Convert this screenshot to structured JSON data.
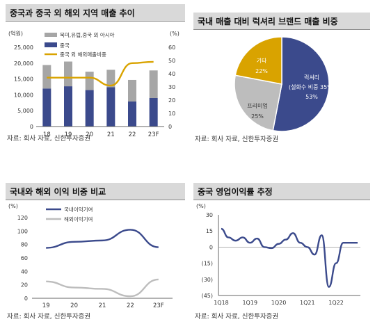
{
  "charts": [
    {
      "title": "중국과 중국 외 해외 지역 매출 추이",
      "source": "자료: 회사 자료, 신한투자증권"
    },
    {
      "title": "국내 매출 대비 럭셔리 브랜드 매출 비중",
      "source": "자료: 회사 자료, 신한투자증권"
    },
    {
      "title": "국내와 해외 이익 비중 비교",
      "source": "자료: 회사 자료, 신한투자증권"
    },
    {
      "title": "중국 영업이익률 추정",
      "source": "자료: 회사 자료, 신한투자증권"
    }
  ],
  "colors": {
    "navy": "#3b4a8c",
    "gray": "#a6a6a6",
    "gold": "#d9a300",
    "lightgray": "#bdbdbd",
    "title_bg": "#d9d9d9"
  },
  "chart_data": [
    {
      "type": "bar",
      "stacked": true,
      "categories": [
        "18",
        "19",
        "20",
        "21",
        "22",
        "23F"
      ],
      "left_unit": "(억원)",
      "right_unit": "(%)",
      "ylim": [
        0,
        25000
      ],
      "y_ticks": [
        "0",
        "5,000",
        "10,000",
        "15,000",
        "20,000",
        "25,000"
      ],
      "y2lim": [
        0,
        60
      ],
      "y2_ticks": [
        "0",
        "10",
        "20",
        "30",
        "40",
        "50",
        "60"
      ],
      "series": [
        {
          "name": "중국",
          "values": [
            12000,
            12700,
            11500,
            12400,
            7900,
            9000
          ]
        },
        {
          "name": "북미,유럽,중국 외 아시아",
          "values": [
            7400,
            7800,
            5800,
            5500,
            6800,
            8700
          ]
        },
        {
          "name": "중국 외 해외매출비중",
          "axis": "right",
          "type": "line",
          "values": [
            37,
            37,
            37,
            31,
            48,
            49
          ]
        }
      ],
      "legend_position": "top"
    },
    {
      "type": "pie",
      "slices": [
        {
          "label": "럭셔리",
          "sublabel": "(설화수 비중 35%)",
          "value": 53,
          "text": "53%"
        },
        {
          "label": "프리미엄",
          "value": 25,
          "text": "25%"
        },
        {
          "label": "기타",
          "value": 22,
          "text": "22%"
        }
      ]
    },
    {
      "type": "line",
      "categories": [
        "19",
        "20",
        "21",
        "22",
        "23F"
      ],
      "unit": "(%)",
      "ylim": [
        0,
        120
      ],
      "y_ticks": [
        "0",
        "20",
        "40",
        "60",
        "80",
        "100",
        "120"
      ],
      "series": [
        {
          "name": "국내이익기여",
          "values": [
            75,
            84,
            86,
            102,
            76
          ]
        },
        {
          "name": "해외이익기여",
          "values": [
            25,
            16,
            14,
            3,
            28
          ]
        }
      ],
      "legend_position": "top-left"
    },
    {
      "type": "line",
      "categories": [
        "1Q18",
        "2Q18",
        "3Q18",
        "4Q18",
        "1Q19",
        "2Q19",
        "3Q19",
        "4Q19",
        "1Q20",
        "2Q20",
        "3Q20",
        "4Q20",
        "1Q21",
        "2Q21",
        "3Q21",
        "4Q21",
        "1Q22",
        "2Q22",
        "3Q22",
        "4Q22"
      ],
      "x_labels": [
        "1Q18",
        "1Q19",
        "1Q20",
        "1Q21",
        "1Q22"
      ],
      "unit": "(%)",
      "ylim": [
        -45,
        30
      ],
      "y_ticks": [
        "(45)",
        "(30)",
        "(15)",
        "0",
        "15",
        "30"
      ],
      "series": [
        {
          "values": [
            17,
            9,
            6,
            9,
            4,
            8,
            0,
            -1,
            3,
            7,
            13,
            4,
            0,
            -7,
            11,
            -37,
            -15,
            4,
            4,
            4
          ]
        }
      ]
    }
  ]
}
